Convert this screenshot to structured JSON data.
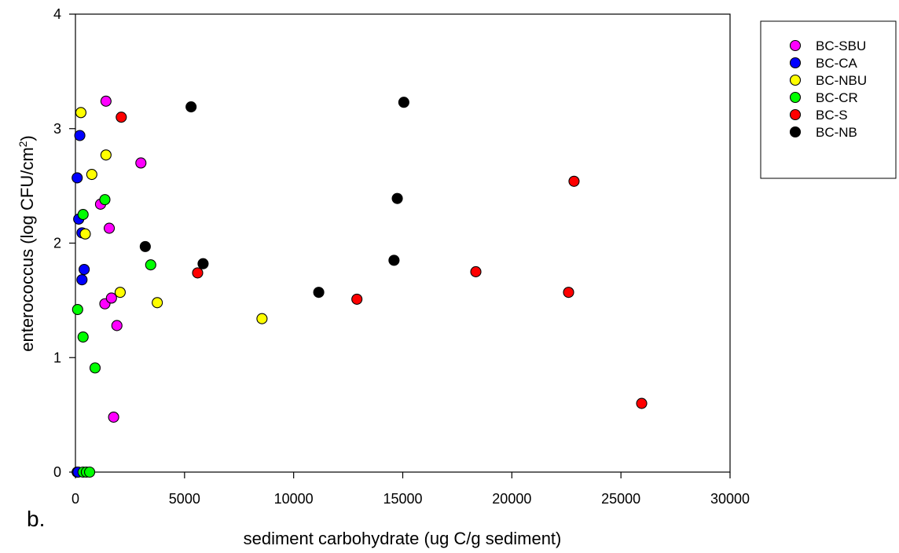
{
  "panel_label": "b.",
  "chart_data": {
    "type": "scatter",
    "xlabel": "sediment carbohydrate (ug C/g sediment)",
    "ylabel_main": "enterococcus (log CFU/cm",
    "ylabel_sup": "2",
    "ylabel_close": ")",
    "xlim": [
      0,
      30000
    ],
    "ylim": [
      0,
      4
    ],
    "xticks": [
      0,
      5000,
      10000,
      15000,
      20000,
      25000,
      30000
    ],
    "yticks": [
      0,
      1,
      2,
      3,
      4
    ],
    "grid": false,
    "legend_position": "top-right, outside plot",
    "series": [
      {
        "name": "BC-SBU",
        "color": "#ff00ff",
        "points": [
          [
            1400,
            3.24
          ],
          [
            3000,
            2.7
          ],
          [
            1150,
            2.34
          ],
          [
            1550,
            2.13
          ],
          [
            1350,
            1.47
          ],
          [
            1650,
            1.52
          ],
          [
            1900,
            1.28
          ],
          [
            1750,
            0.48
          ]
        ]
      },
      {
        "name": "BC-CA",
        "color": "#0000ff",
        "points": [
          [
            200,
            2.94
          ],
          [
            80,
            2.57
          ],
          [
            150,
            2.21
          ],
          [
            300,
            2.09
          ],
          [
            400,
            1.77
          ],
          [
            300,
            1.68
          ],
          [
            80,
            0.0
          ],
          [
            120,
            0.0
          ]
        ]
      },
      {
        "name": "BC-NBU",
        "color": "#ffff00",
        "points": [
          [
            250,
            3.14
          ],
          [
            1400,
            2.77
          ],
          [
            750,
            2.6
          ],
          [
            450,
            2.08
          ],
          [
            2050,
            1.57
          ],
          [
            3750,
            1.48
          ],
          [
            8550,
            1.34
          ]
        ]
      },
      {
        "name": "BC-CR",
        "color": "#00ff00",
        "points": [
          [
            1350,
            2.38
          ],
          [
            350,
            2.25
          ],
          [
            3450,
            1.81
          ],
          [
            100,
            1.42
          ],
          [
            350,
            1.18
          ],
          [
            900,
            0.91
          ],
          [
            350,
            0.0
          ],
          [
            500,
            0.0
          ],
          [
            650,
            0.0
          ]
        ]
      },
      {
        "name": "BC-S",
        "color": "#ff0000",
        "points": [
          [
            2100,
            3.1
          ],
          [
            22850,
            2.54
          ],
          [
            5600,
            1.74
          ],
          [
            18350,
            1.75
          ],
          [
            12900,
            1.51
          ],
          [
            22600,
            1.57
          ],
          [
            25950,
            0.6
          ]
        ]
      },
      {
        "name": "BC-NB",
        "color": "#000000",
        "points": [
          [
            5300,
            3.19
          ],
          [
            15050,
            3.23
          ],
          [
            14750,
            2.39
          ],
          [
            3200,
            1.97
          ],
          [
            5850,
            1.82
          ],
          [
            14600,
            1.85
          ],
          [
            11150,
            1.57
          ]
        ]
      }
    ]
  }
}
